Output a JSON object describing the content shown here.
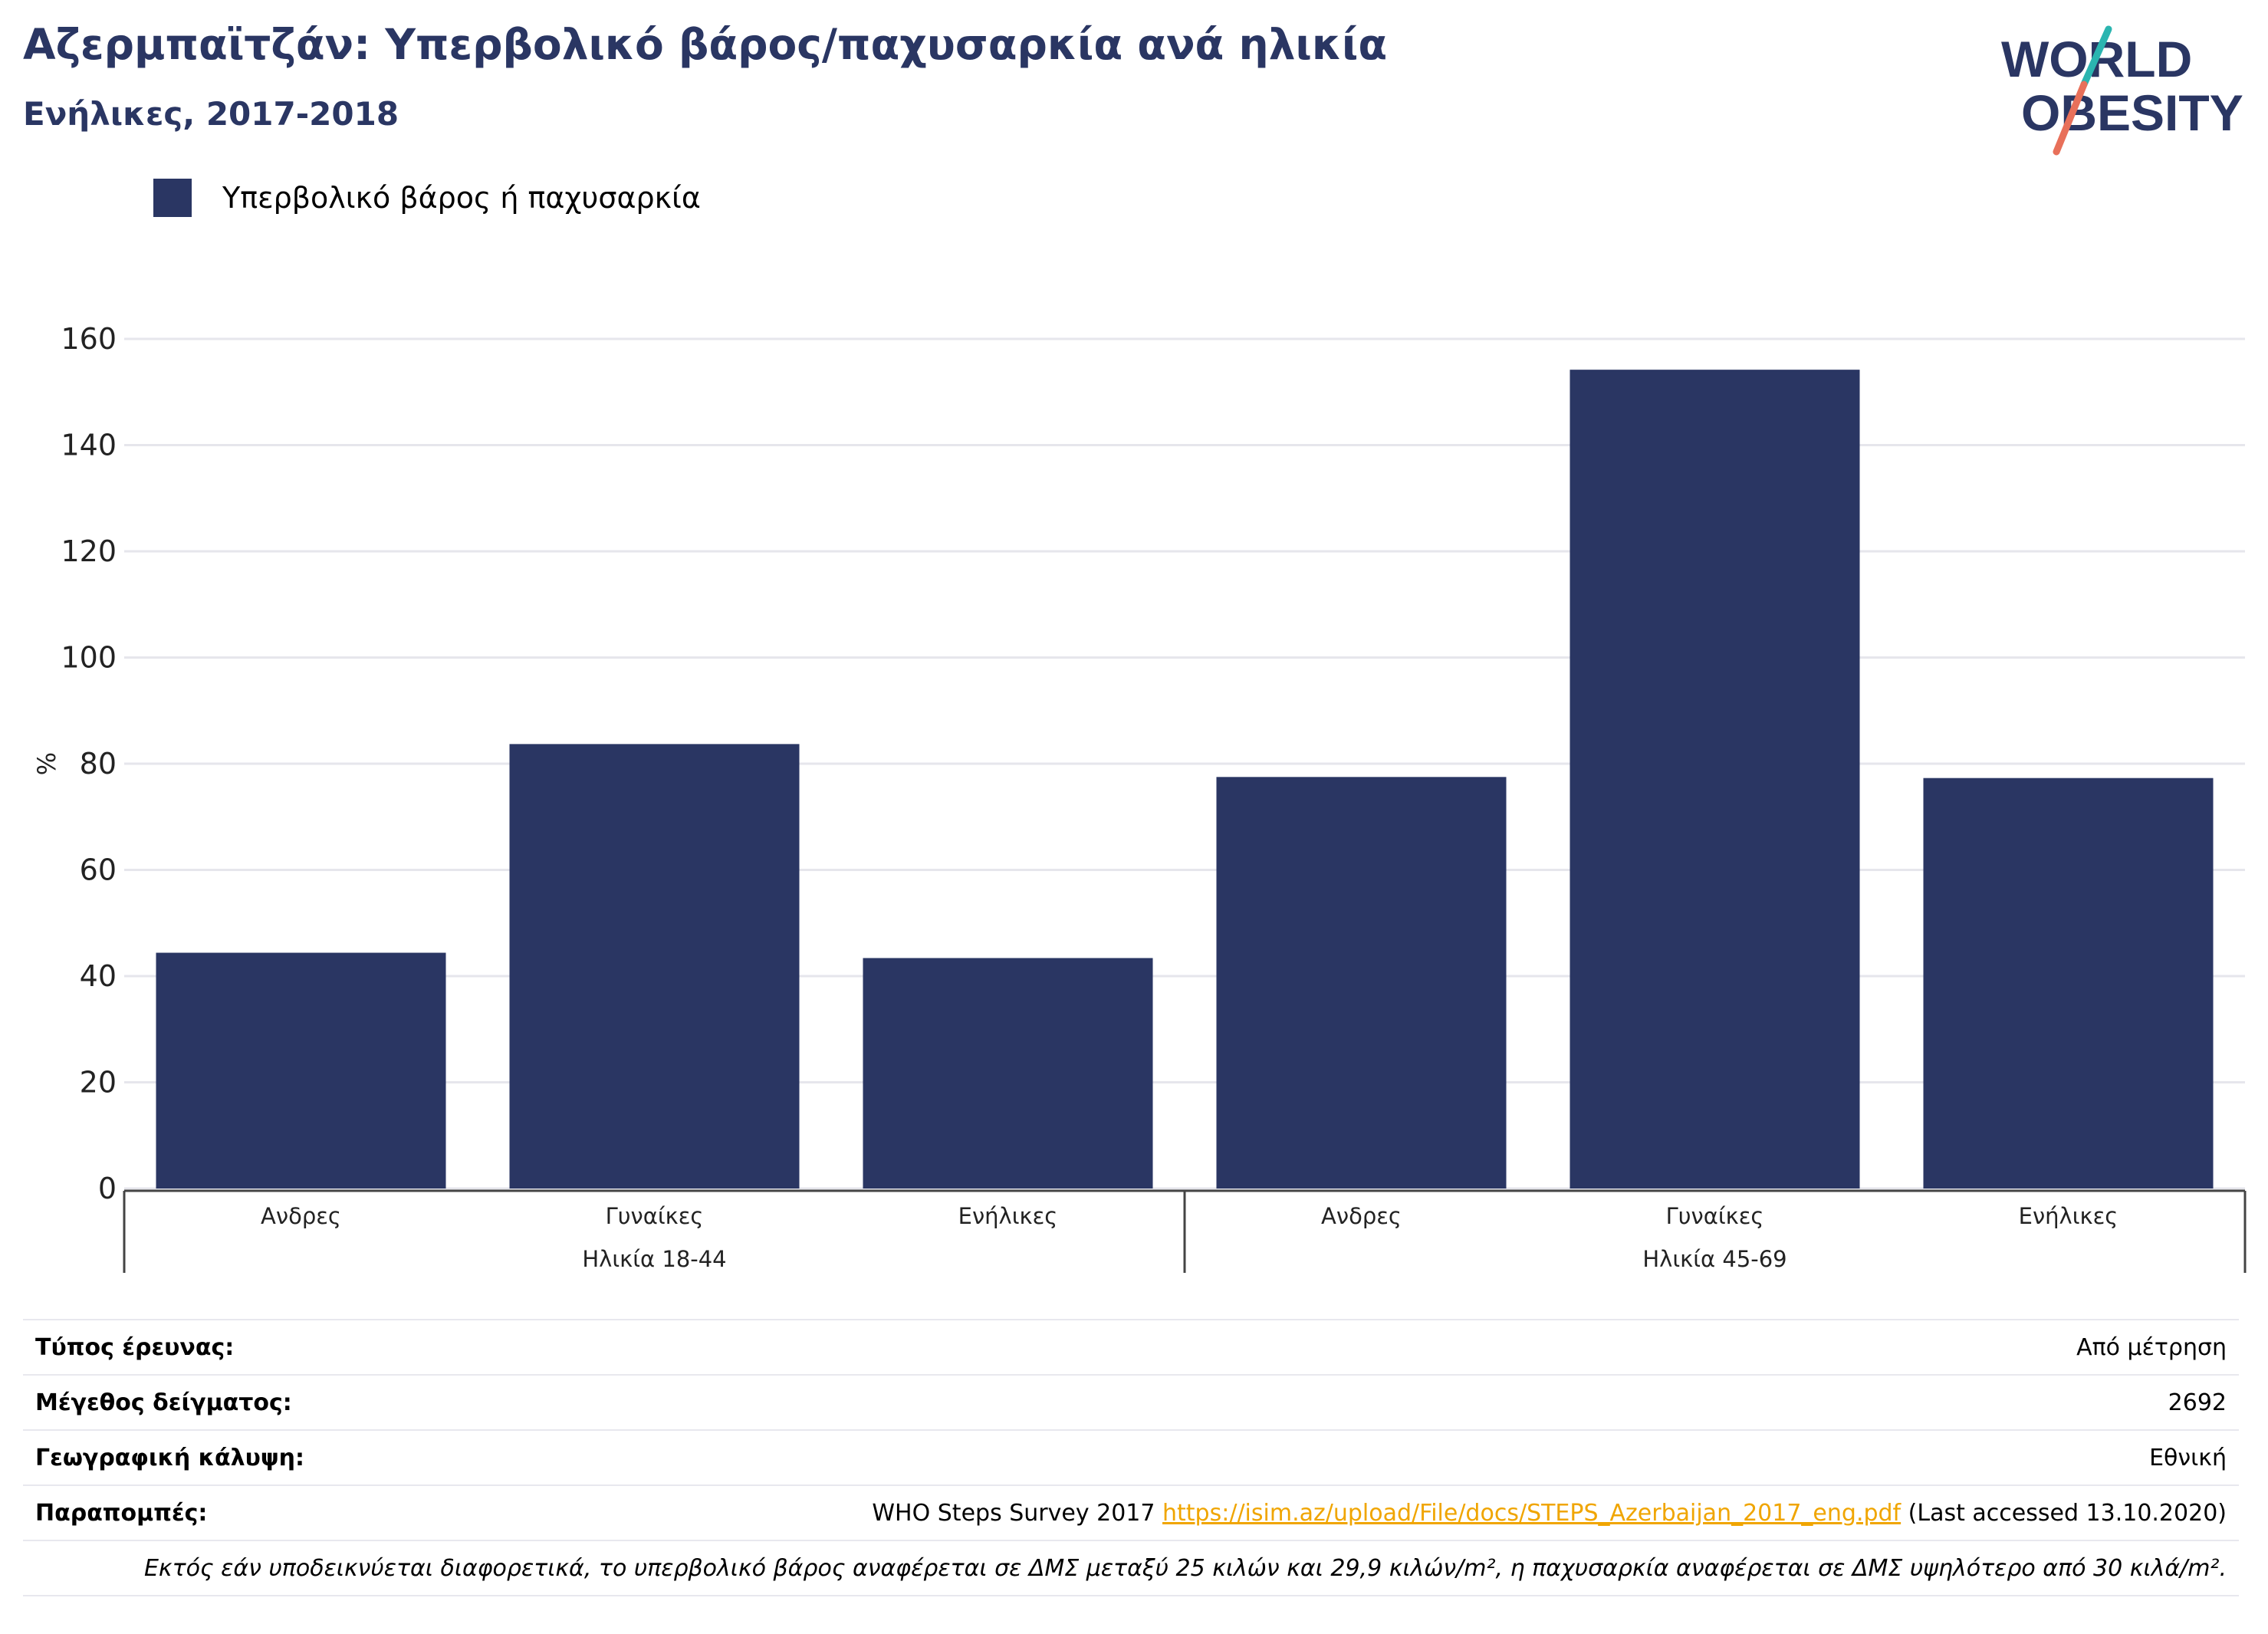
{
  "header": {
    "title": "Αζερμπαϊτζάν: Υπερβολικό βάρος/παχυσαρκία ανά ηλικία",
    "subtitle": "Ενήλικες, 2017-2018"
  },
  "logo": {
    "line1": "WORLD",
    "line2": "OBESITY"
  },
  "colors": {
    "bar": "#2a3663",
    "accent_teal": "#2bb5b0",
    "accent_coral": "#e8705a",
    "link": "#f0a500"
  },
  "chart_data": {
    "type": "bar",
    "categories": [
      "Ανδρες",
      "Γυναίκες",
      "Ενήλικες",
      "Ανδρες",
      "Γυναίκες",
      "Ενήλικες"
    ],
    "groups": [
      {
        "label": "Ηλικία 18-44",
        "count": 3
      },
      {
        "label": "Ηλικία 45-69",
        "count": 3
      }
    ],
    "series": [
      {
        "name": "Υπερβολικό βάρος ή παχυσαρκία",
        "values": [
          44.4,
          83.7,
          43.4,
          77.5,
          154.2,
          77.3
        ]
      }
    ],
    "ylabel": "%",
    "ylim": [
      0,
      160
    ],
    "yticks": [
      0,
      20,
      40,
      60,
      80,
      100,
      120,
      140,
      160
    ],
    "grid": true,
    "legend": "top-left"
  },
  "table": {
    "survey_type_label": "Τύπος έρευνας:",
    "survey_type_value": "Από μέτρηση",
    "sample_size_label": "Μέγεθος δείγματος:",
    "sample_size_value": "2692",
    "coverage_label": "Γεωγραφική κάλυψη:",
    "coverage_value": "Εθνική",
    "references_label": "Παραπομπές:",
    "references_pre": "WHO Steps Survey 2017 ",
    "references_link": "https://isim.az/upload/File/docs/STEPS_Azerbaijan_2017_eng.pdf",
    "references_post": " (Last accessed 13.10.2020)",
    "note": "Εκτός εάν υποδεικνύεται διαφορετικά, το υπερβολικό βάρος αναφέρεται σε ΔΜΣ μεταξύ 25 κιλών και 29,9 κιλών/m², η παχυσαρκία αναφέρεται σε ΔΜΣ υψηλότερο από 30 κιλά/m²."
  }
}
